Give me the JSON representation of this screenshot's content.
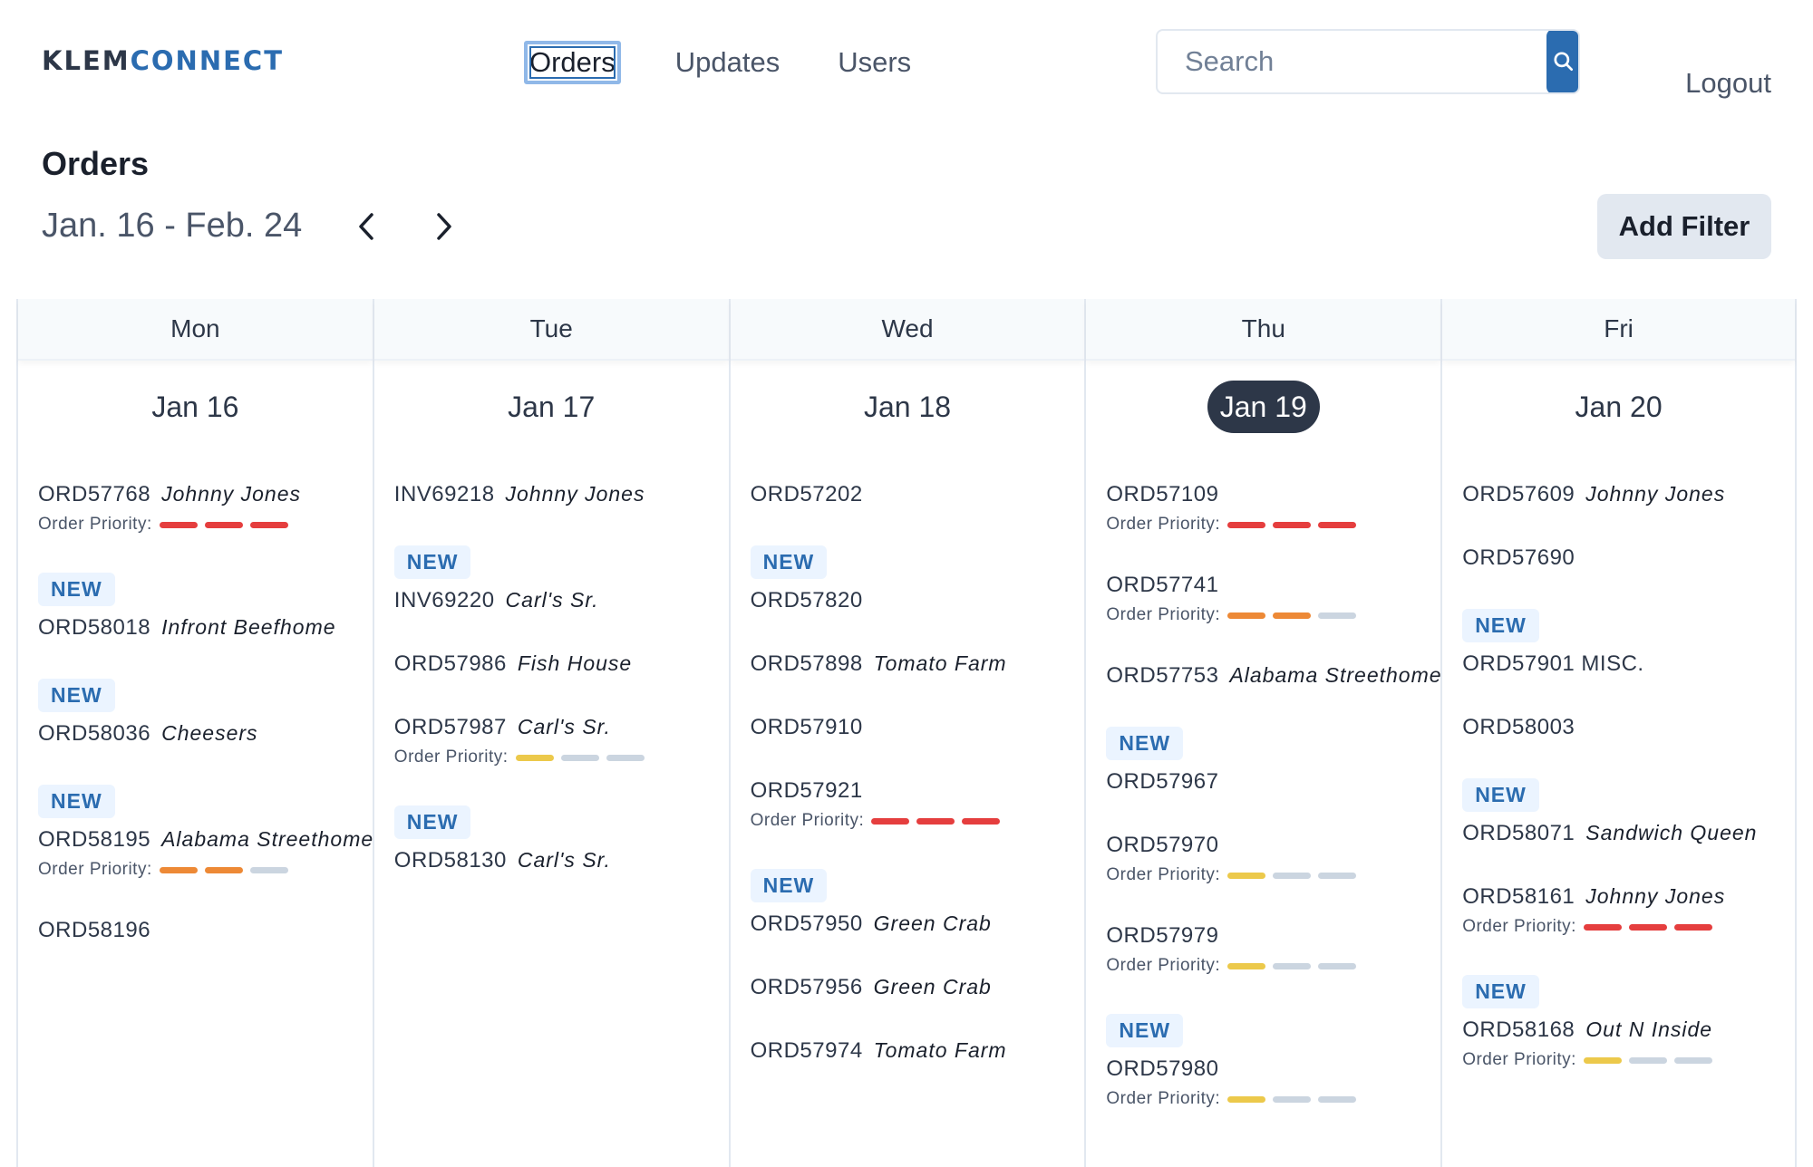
{
  "header": {
    "logo_left": "KLEM",
    "logo_right": "CONNECT",
    "nav": [
      {
        "label": "Orders",
        "active": true
      },
      {
        "label": "Updates",
        "active": false
      },
      {
        "label": "Users",
        "active": false
      }
    ],
    "search_placeholder": "Search",
    "logout": "Logout"
  },
  "page": {
    "title": "Orders",
    "date_range": "Jan. 16 - Feb. 24",
    "add_filter": "Add Filter"
  },
  "colors": {
    "accent": "#2b6cb0",
    "priority_red": "#e53e3e",
    "priority_orange": "#ed8936",
    "priority_yellow": "#ecc94b",
    "priority_empty": "#cbd5e0"
  },
  "priority_label": "Order Priority:",
  "new_label": "NEW",
  "days": [
    {
      "weekday": "Mon",
      "date": "Jan 16",
      "today": false,
      "orders": [
        {
          "id": "ORD57768",
          "customer": "Johnny Jones",
          "new": false,
          "priority": {
            "level": 3,
            "color": "red"
          }
        },
        {
          "id": "ORD58018",
          "customer": "Infront Beefhome",
          "new": true,
          "priority": null
        },
        {
          "id": "ORD58036",
          "customer": "Cheesers",
          "new": true,
          "priority": null
        },
        {
          "id": "ORD58195",
          "customer": "Alabama Streethome",
          "new": true,
          "priority": {
            "level": 2,
            "color": "orange"
          }
        },
        {
          "id": "ORD58196",
          "customer": "",
          "new": false,
          "priority": null
        }
      ]
    },
    {
      "weekday": "Tue",
      "date": "Jan 17",
      "today": false,
      "orders": [
        {
          "id": "INV69218",
          "customer": "Johnny Jones",
          "new": false,
          "priority": null
        },
        {
          "id": "INV69220",
          "customer": "Carl's Sr.",
          "new": true,
          "priority": null
        },
        {
          "id": "ORD57986",
          "customer": "Fish House",
          "new": false,
          "priority": null
        },
        {
          "id": "ORD57987",
          "customer": "Carl's Sr.",
          "new": false,
          "priority": {
            "level": 1,
            "color": "yellow"
          }
        },
        {
          "id": "ORD58130",
          "customer": "Carl's Sr.",
          "new": true,
          "priority": null
        }
      ]
    },
    {
      "weekday": "Wed",
      "date": "Jan 18",
      "today": false,
      "orders": [
        {
          "id": "ORD57202",
          "customer": "",
          "new": false,
          "priority": null
        },
        {
          "id": "ORD57820",
          "customer": "",
          "new": true,
          "priority": null
        },
        {
          "id": "ORD57898",
          "customer": "Tomato Farm",
          "new": false,
          "priority": null
        },
        {
          "id": "ORD57910",
          "customer": "",
          "new": false,
          "priority": null
        },
        {
          "id": "ORD57921",
          "customer": "",
          "new": false,
          "priority": {
            "level": 3,
            "color": "red"
          }
        },
        {
          "id": "ORD57950",
          "customer": "Green Crab",
          "new": true,
          "priority": null
        },
        {
          "id": "ORD57956",
          "customer": "Green Crab",
          "new": false,
          "priority": null
        },
        {
          "id": "ORD57974",
          "customer": "Tomato Farm",
          "new": false,
          "priority": null
        }
      ]
    },
    {
      "weekday": "Thu",
      "date": "Jan 19",
      "today": true,
      "orders": [
        {
          "id": "ORD57109",
          "customer": "",
          "new": false,
          "priority": {
            "level": 3,
            "color": "red"
          }
        },
        {
          "id": "ORD57741",
          "customer": "",
          "new": false,
          "priority": {
            "level": 2,
            "color": "orange"
          }
        },
        {
          "id": "ORD57753",
          "customer": "Alabama Streethome",
          "new": false,
          "priority": null
        },
        {
          "id": "ORD57967",
          "customer": "",
          "new": true,
          "priority": null
        },
        {
          "id": "ORD57970",
          "customer": "",
          "new": false,
          "priority": {
            "level": 1,
            "color": "yellow"
          }
        },
        {
          "id": "ORD57979",
          "customer": "",
          "new": false,
          "priority": {
            "level": 1,
            "color": "yellow"
          }
        },
        {
          "id": "ORD57980",
          "customer": "",
          "new": true,
          "priority": {
            "level": 1,
            "color": "yellow"
          }
        }
      ]
    },
    {
      "weekday": "Fri",
      "date": "Jan 20",
      "today": false,
      "orders": [
        {
          "id": "ORD57609",
          "customer": "Johnny Jones",
          "new": false,
          "priority": null
        },
        {
          "id": "ORD57690",
          "customer": "",
          "new": false,
          "priority": null
        },
        {
          "id": "ORD57901 MISC.",
          "customer": "",
          "new": true,
          "priority": null
        },
        {
          "id": "ORD58003",
          "customer": "",
          "new": false,
          "priority": null
        },
        {
          "id": "ORD58071",
          "customer": "Sandwich Queen",
          "new": true,
          "priority": null
        },
        {
          "id": "ORD58161",
          "customer": "Johnny Jones",
          "new": false,
          "priority": {
            "level": 3,
            "color": "red"
          }
        },
        {
          "id": "ORD58168",
          "customer": "Out N Inside",
          "new": true,
          "priority": {
            "level": 1,
            "color": "yellow"
          }
        }
      ]
    }
  ]
}
